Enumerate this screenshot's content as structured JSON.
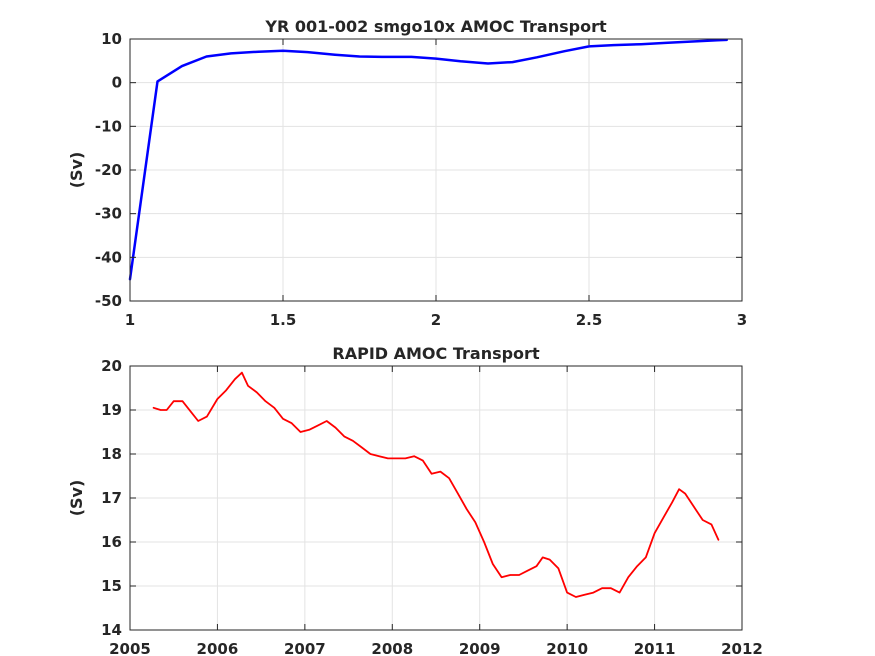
{
  "chart_data": [
    {
      "type": "line",
      "title": "YR 001-002 smgo10x AMOC Transport",
      "xlabel": "",
      "ylabel": "(Sv)",
      "xlim": [
        1,
        3
      ],
      "ylim": [
        -50,
        10
      ],
      "xticks": [
        "1",
        "1.5",
        "2",
        "2.5",
        "3"
      ],
      "yticks": [
        "10",
        "0",
        "-10",
        "-20",
        "-30",
        "-40",
        "-50"
      ],
      "grid": true,
      "series": [
        {
          "color": "#0000ff",
          "x": [
            1.0,
            1.09,
            1.17,
            1.25,
            1.33,
            1.42,
            1.5,
            1.58,
            1.67,
            1.75,
            1.83,
            1.92,
            2.0,
            2.08,
            2.17,
            2.25,
            2.33,
            2.42,
            2.5,
            2.58,
            2.67,
            2.75,
            2.83,
            2.92,
            2.95
          ],
          "values": [
            -45,
            0.3,
            3.8,
            6.0,
            6.7,
            7.1,
            7.3,
            7.0,
            6.4,
            6.0,
            5.9,
            5.9,
            5.5,
            4.9,
            4.4,
            4.7,
            5.8,
            7.2,
            8.3,
            8.6,
            8.8,
            9.1,
            9.4,
            9.7,
            9.8
          ]
        }
      ]
    },
    {
      "type": "line",
      "title": "RAPID AMOC Transport",
      "xlabel": "",
      "ylabel": "(Sv)",
      "xlim": [
        2005,
        2012
      ],
      "ylim": [
        14,
        20
      ],
      "xticks": [
        "2005",
        "2006",
        "2007",
        "2008",
        "2009",
        "2010",
        "2011",
        "2012"
      ],
      "yticks": [
        "20",
        "19",
        "18",
        "17",
        "16",
        "15",
        "14"
      ],
      "grid": true,
      "series": [
        {
          "color": "#ff0000",
          "x": [
            2005.27,
            2005.35,
            2005.42,
            2005.5,
            2005.6,
            2005.7,
            2005.78,
            2005.88,
            2006.0,
            2006.1,
            2006.2,
            2006.28,
            2006.35,
            2006.45,
            2006.55,
            2006.65,
            2006.75,
            2006.85,
            2006.95,
            2007.05,
            2007.15,
            2007.25,
            2007.35,
            2007.45,
            2007.55,
            2007.65,
            2007.75,
            2007.85,
            2007.95,
            2008.05,
            2008.15,
            2008.25,
            2008.35,
            2008.45,
            2008.55,
            2008.65,
            2008.75,
            2008.85,
            2008.95,
            2009.05,
            2009.15,
            2009.25,
            2009.35,
            2009.45,
            2009.55,
            2009.65,
            2009.72,
            2009.8,
            2009.9,
            2010.0,
            2010.1,
            2010.2,
            2010.3,
            2010.4,
            2010.5,
            2010.6,
            2010.7,
            2010.8,
            2010.9,
            2011.0,
            2011.1,
            2011.2,
            2011.28,
            2011.35,
            2011.45,
            2011.55,
            2011.65,
            2011.73
          ],
          "values": [
            19.05,
            19.0,
            19.0,
            19.2,
            19.2,
            18.95,
            18.75,
            18.85,
            19.25,
            19.45,
            19.7,
            19.85,
            19.55,
            19.4,
            19.2,
            19.05,
            18.8,
            18.7,
            18.5,
            18.55,
            18.65,
            18.75,
            18.6,
            18.4,
            18.3,
            18.15,
            18.0,
            17.95,
            17.9,
            17.9,
            17.9,
            17.95,
            17.85,
            17.55,
            17.6,
            17.45,
            17.1,
            16.75,
            16.45,
            16.0,
            15.5,
            15.2,
            15.25,
            15.25,
            15.35,
            15.45,
            15.65,
            15.6,
            15.4,
            14.85,
            14.75,
            14.8,
            14.85,
            14.95,
            14.95,
            14.85,
            15.2,
            15.45,
            15.65,
            16.2,
            16.55,
            16.9,
            17.2,
            17.1,
            16.8,
            16.5,
            16.4,
            16.05
          ]
        }
      ]
    }
  ]
}
